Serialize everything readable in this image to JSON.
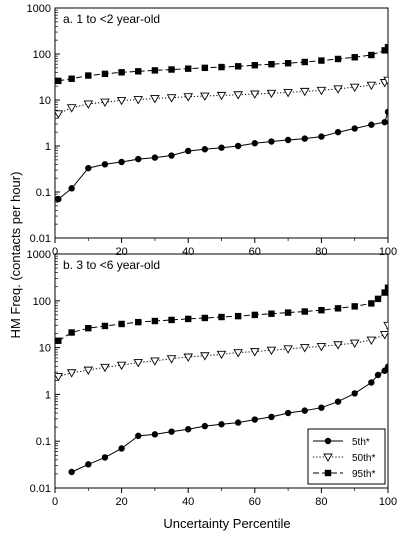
{
  "figure": {
    "ylabel": "HM Freq. (contacts per hour)",
    "xlabel": "Uncertainty Percentile"
  },
  "chart_data": [
    {
      "type": "line",
      "title": "a. 1 to <2 year-old",
      "xlabel": "",
      "ylabel": "",
      "yscale": "log",
      "xlim": [
        0,
        100
      ],
      "ylim": [
        0.01,
        1000
      ],
      "x_ticks": [
        "0",
        "20",
        "40",
        "60",
        "80",
        "100"
      ],
      "y_ticks": [
        "0.01",
        "0.1",
        "1",
        "10",
        "100",
        "1000"
      ],
      "legend": null,
      "series": [
        {
          "key": "p5",
          "marker": "circle-filled",
          "line": "solid",
          "x": [
            1,
            5,
            10,
            15,
            20,
            25,
            30,
            35,
            40,
            45,
            50,
            55,
            60,
            65,
            70,
            75,
            80,
            85,
            90,
            95,
            99,
            100
          ],
          "values": [
            0.07,
            0.12,
            0.33,
            0.4,
            0.45,
            0.52,
            0.56,
            0.62,
            0.78,
            0.85,
            0.92,
            1.0,
            1.15,
            1.25,
            1.35,
            1.45,
            1.6,
            2.0,
            2.4,
            2.9,
            3.3,
            5.5
          ]
        },
        {
          "key": "p50",
          "marker": "triangle-down-open",
          "line": "dotted",
          "x": [
            1,
            5,
            10,
            15,
            20,
            25,
            30,
            35,
            40,
            45,
            50,
            55,
            60,
            65,
            70,
            75,
            80,
            85,
            90,
            95,
            99,
            100
          ],
          "values": [
            5,
            6.8,
            8.2,
            9,
            9.8,
            10.2,
            10.8,
            11.2,
            11.8,
            12.2,
            12.6,
            13,
            13.5,
            14,
            14.6,
            15.4,
            16.2,
            17.5,
            19,
            21,
            24,
            27
          ]
        },
        {
          "key": "p95",
          "marker": "square-filled",
          "line": "dashed",
          "x": [
            1,
            5,
            10,
            15,
            20,
            25,
            30,
            35,
            40,
            45,
            50,
            55,
            60,
            65,
            70,
            75,
            80,
            85,
            90,
            95,
            99,
            100
          ],
          "values": [
            26,
            29,
            34,
            37,
            40,
            42,
            44,
            46,
            48,
            50,
            52,
            54,
            57,
            60,
            63,
            67,
            72,
            78,
            85,
            95,
            120,
            140
          ]
        }
      ]
    },
    {
      "type": "line",
      "title": "b. 3 to <6 year-old",
      "xlabel": "",
      "ylabel": "",
      "yscale": "log",
      "xlim": [
        0,
        100
      ],
      "ylim": [
        0.01,
        1000
      ],
      "x_ticks": [
        "0",
        "20",
        "40",
        "60",
        "80",
        "100"
      ],
      "y_ticks": [
        "0.01",
        "0.1",
        "1",
        "10",
        "100",
        "1000"
      ],
      "legend": {
        "position": "bottom-right",
        "entries": [
          {
            "series": "p5",
            "label": "5th*"
          },
          {
            "series": "p50",
            "label": "50th*"
          },
          {
            "series": "p95",
            "label": "95th*"
          }
        ]
      },
      "series": [
        {
          "key": "p5",
          "marker": "circle-filled",
          "line": "solid",
          "x": [
            5,
            10,
            15,
            20,
            25,
            30,
            35,
            40,
            45,
            50,
            55,
            60,
            65,
            70,
            75,
            80,
            85,
            90,
            95,
            97,
            99,
            100
          ],
          "values": [
            0.022,
            0.032,
            0.045,
            0.07,
            0.13,
            0.14,
            0.16,
            0.18,
            0.21,
            0.23,
            0.25,
            0.29,
            0.33,
            0.4,
            0.45,
            0.52,
            0.7,
            1.05,
            1.8,
            2.6,
            3.2,
            3.9
          ]
        },
        {
          "key": "p50",
          "marker": "triangle-down-open",
          "line": "dotted",
          "x": [
            1,
            5,
            10,
            15,
            20,
            25,
            30,
            35,
            40,
            45,
            50,
            55,
            60,
            65,
            70,
            75,
            80,
            85,
            90,
            95,
            99,
            100
          ],
          "values": [
            2.4,
            2.9,
            3.3,
            3.8,
            4.2,
            4.8,
            5.2,
            5.8,
            6.3,
            6.7,
            7.2,
            7.8,
            8.2,
            8.8,
            9.4,
            10,
            10.6,
            11.5,
            12.5,
            14.5,
            19,
            30
          ]
        },
        {
          "key": "p95",
          "marker": "square-filled",
          "line": "dashed",
          "x": [
            1,
            5,
            10,
            15,
            20,
            25,
            30,
            35,
            40,
            45,
            50,
            55,
            60,
            65,
            70,
            75,
            80,
            85,
            90,
            95,
            97,
            99,
            100
          ],
          "values": [
            14,
            21,
            26,
            29,
            32,
            35,
            37,
            39,
            41,
            43,
            45,
            47,
            50,
            53,
            56,
            59,
            63,
            69,
            76,
            88,
            110,
            150,
            190
          ]
        }
      ]
    }
  ]
}
